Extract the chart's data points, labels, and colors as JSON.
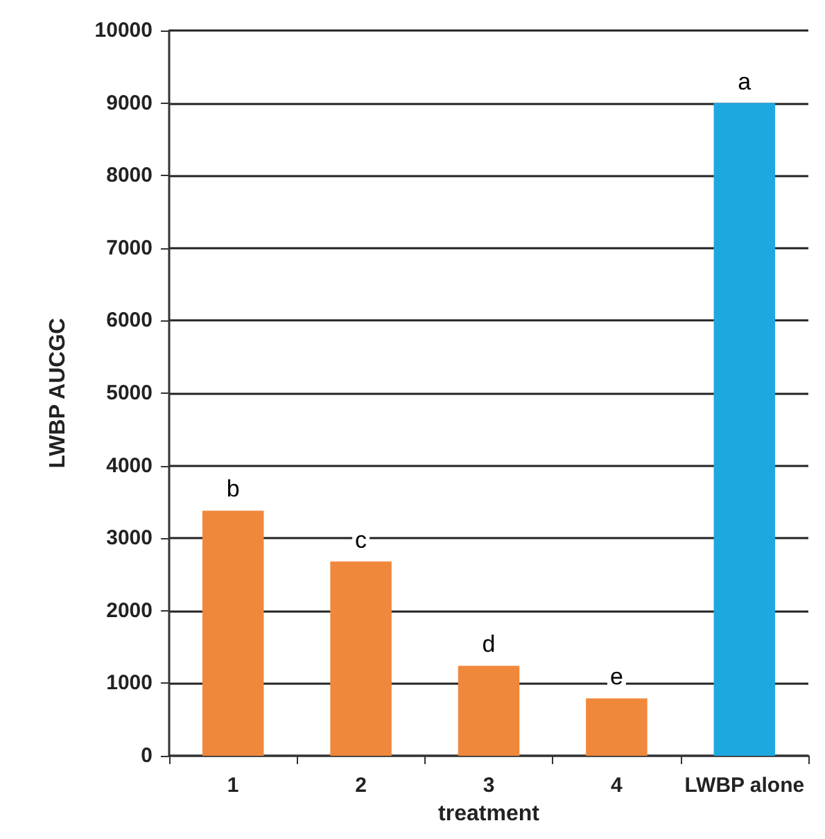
{
  "chart_data": {
    "type": "bar",
    "xlabel": "treatment",
    "ylabel": "LWBP AUCGC",
    "categories": [
      "1",
      "2",
      "3",
      "4",
      "LWBP alone"
    ],
    "values": [
      3380,
      2680,
      1240,
      790,
      9000
    ],
    "colors": [
      "#f0883c",
      "#f0883c",
      "#f0883c",
      "#f0883c",
      "#1ea8e0"
    ],
    "ylim": [
      0,
      10000
    ],
    "yticks": [
      0,
      1000,
      2000,
      3000,
      4000,
      5000,
      6000,
      7000,
      8000,
      9000,
      10000
    ],
    "grid": "y",
    "annotations": [
      {
        "text": "b",
        "x": "1",
        "y": 3380
      },
      {
        "text": "c",
        "x": "2",
        "y": 2680
      },
      {
        "text": "d",
        "x": "3",
        "y": 1240
      },
      {
        "text": "e",
        "x": "4",
        "y": 790
      },
      {
        "text": "a",
        "x": "LWBP alone",
        "y": 9000
      }
    ]
  }
}
